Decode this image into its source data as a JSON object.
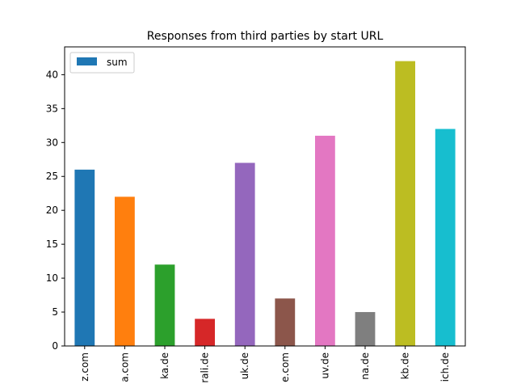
{
  "chart_data": {
    "type": "bar",
    "title": "Responses from third parties by start URL",
    "xlabel": "",
    "ylabel": "",
    "categories": [
      "z.com",
      "a.com",
      "ka.de",
      "rali.de",
      "uk.de",
      "e.com",
      "uv.de",
      "na.de",
      "kb.de",
      "ich.de"
    ],
    "series": [
      {
        "name": "sum",
        "values": [
          26,
          22,
          12,
          4,
          27,
          7,
          31,
          5,
          42,
          32
        ]
      }
    ],
    "bar_colors": [
      "#1f77b4",
      "#ff7f0e",
      "#2ca02c",
      "#d62728",
      "#9467bd",
      "#8c564b",
      "#e377c2",
      "#7f7f7f",
      "#bcbd22",
      "#17becf"
    ],
    "legend_color": "#1f77b4",
    "ylim": [
      0,
      44.1
    ],
    "yticks": [
      "0",
      "5",
      "10",
      "15",
      "20",
      "25",
      "30",
      "35",
      "40"
    ],
    "legend_position": "top-left",
    "grid": false
  }
}
